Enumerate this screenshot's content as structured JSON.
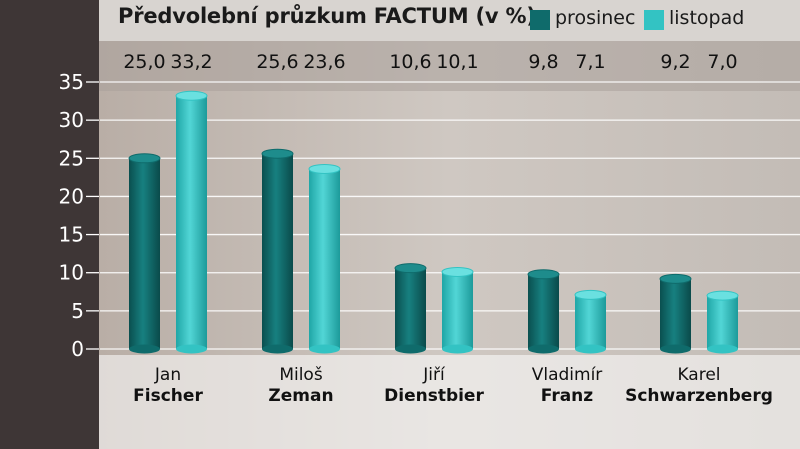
{
  "colors": {
    "prosinec": "#0f6b6b",
    "listopad": "#33c3c3",
    "axis_band": "#3e3636",
    "title_band": "#d8d4d0"
  },
  "chart_data": {
    "type": "bar",
    "title": "Předvolební průzkum FACTUM (v %)",
    "legend_position": "top-right",
    "grid": true,
    "ylim": [
      0,
      35
    ],
    "yticks": [
      "0",
      "5",
      "10",
      "15",
      "20",
      "25",
      "30",
      "35"
    ],
    "candidates": [
      {
        "first": "Jan",
        "last": "Fischer"
      },
      {
        "first": "Miloš",
        "last": "Zeman"
      },
      {
        "first": "Jiří",
        "last": "Dienstbier"
      },
      {
        "first": "Vladimír",
        "last": "Franz"
      },
      {
        "first": "Karel",
        "last": "Schwarzenberg"
      }
    ],
    "series": [
      {
        "name": "prosinec",
        "values": [
          25.0,
          25.6,
          10.6,
          9.8,
          9.2
        ],
        "labels": [
          "25,0",
          "25,6",
          "10,6",
          "9,8",
          "9,2"
        ]
      },
      {
        "name": "listopad",
        "values": [
          33.2,
          23.6,
          10.1,
          7.1,
          7.0
        ],
        "labels": [
          "33,2",
          "23,6",
          "10,1",
          "7,1",
          "7,0"
        ]
      }
    ]
  }
}
